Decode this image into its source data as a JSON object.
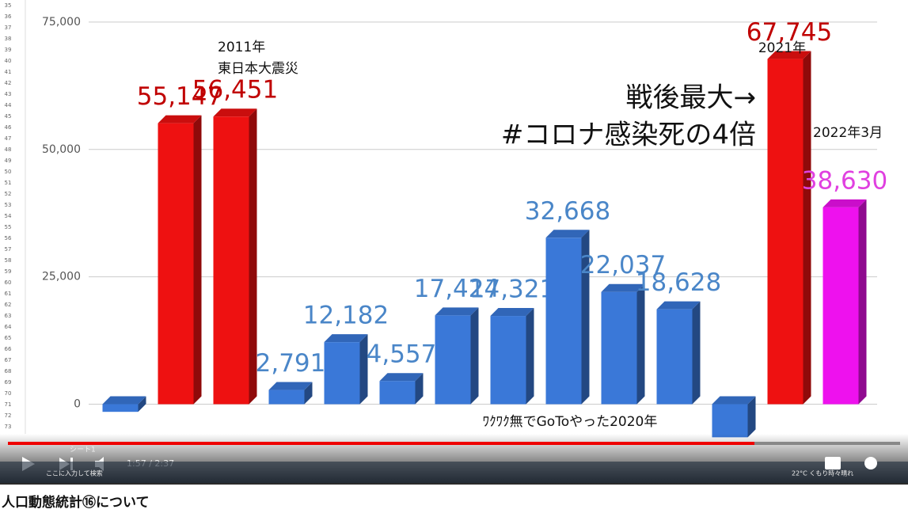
{
  "chart_data": {
    "type": "bar",
    "values": [
      -1500,
      55147,
      56451,
      2791,
      12182,
      4557,
      17424,
      17321,
      32668,
      22037,
      18628,
      -6500,
      67745,
      38630
    ],
    "value_labels": [
      null,
      "55,147",
      "56,451",
      "2,791",
      "12,182",
      "4,557",
      "17,424",
      "17,321",
      "32,668",
      "22,037",
      "18,628",
      null,
      "67,745",
      "38,630"
    ],
    "colors": [
      "#3a78d8",
      "#ee1111",
      "#ee1111",
      "#3a78d8",
      "#3a78d8",
      "#3a78d8",
      "#3a78d8",
      "#3a78d8",
      "#3a78d8",
      "#3a78d8",
      "#3a78d8",
      "#3a78d8",
      "#ee1111",
      "#ee11ee"
    ],
    "label_colors": [
      "#4a86c8",
      "#c00000",
      "#c00000",
      "#4a86c8",
      "#4a86c8",
      "#4a86c8",
      "#4a86c8",
      "#4a86c8",
      "#4a86c8",
      "#4a86c8",
      "#4a86c8",
      "#4a86c8",
      "#c00000",
      "#e040e0"
    ],
    "ylim": [
      -8000,
      77000
    ],
    "yticks": [
      0,
      {
        "value": 25000,
        "label": "25,000"
      },
      {
        "value": 50000,
        "label": "50,000"
      },
      {
        "value": 75000,
        "label": "75,000"
      }
    ],
    "grid": true,
    "annotations": [
      "2011年",
      "東日本大震災",
      "戦後最大→",
      "#コロナ感染死の4倍",
      "2021年",
      "2022年3月",
      "ﾜｸﾜｸ無でGoToやった2020年"
    ]
  },
  "row_numbers": [
    35,
    36,
    37,
    38,
    39,
    40,
    41,
    42,
    43,
    44,
    45,
    46,
    47,
    48,
    49,
    50,
    51,
    52,
    53,
    54,
    55,
    56,
    57,
    58,
    59,
    60,
    61,
    62,
    63,
    64,
    65,
    66,
    67,
    68,
    69,
    70,
    71,
    72,
    73
  ],
  "sheet_tab": "シート1",
  "player": {
    "time": "1:57 / 2:37"
  },
  "taskbar": {
    "search": "ここに入力して検索",
    "weather": "22°C くもり時々晴れ"
  },
  "video_title": "人口動態統計⑯について"
}
